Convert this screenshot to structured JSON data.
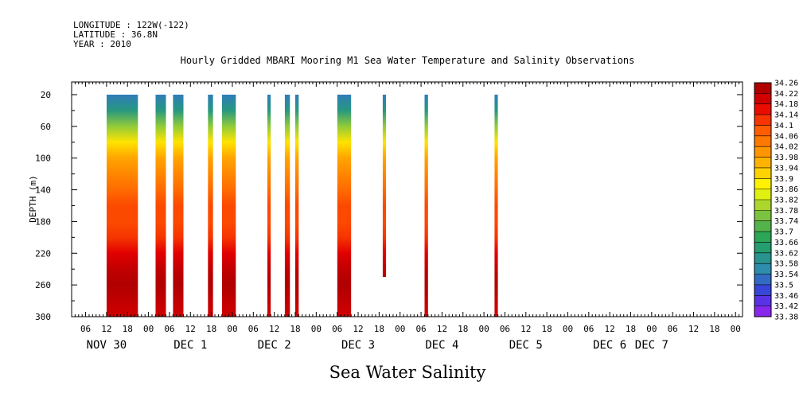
{
  "header": {
    "longitude": "LONGITUDE : 122W(-122)",
    "latitude": "LATITUDE : 36.8N",
    "year": "YEAR : 2010"
  },
  "title": "Hourly Gridded MBARI Mooring M1 Sea Water Temperature and Salinity Observations",
  "ylabel": "DEPTH (m)",
  "footer": "Sea Water Salinity",
  "chart_data": {
    "type": "heatmap",
    "title": "Hourly Gridded MBARI Mooring M1 Sea Water Temperature and Salinity Observations",
    "xlabel": "",
    "ylabel": "DEPTH (m)",
    "variable": "Sea Water Salinity",
    "xlim": [
      "2010-11-30T02:00",
      "2010-12-08T02:00"
    ],
    "ylim": [
      300,
      4
    ],
    "y_ticks": [
      20,
      60,
      100,
      140,
      180,
      220,
      260,
      300
    ],
    "x_hour_ticks": [
      "06",
      "12",
      "18",
      "00",
      "06",
      "12",
      "18",
      "00",
      "06",
      "12",
      "18",
      "00",
      "06",
      "12",
      "18",
      "00",
      "06",
      "12",
      "18",
      "00",
      "06",
      "12",
      "18",
      "00",
      "06",
      "12",
      "18",
      "00",
      "06",
      "12",
      "18",
      "00"
    ],
    "x_date_labels": [
      {
        "text": "NOV 30",
        "at": "2010-11-30T12:00"
      },
      {
        "text": "DEC  1",
        "at": "2010-12-01T12:00"
      },
      {
        "text": "DEC  2",
        "at": "2010-12-02T12:00"
      },
      {
        "text": "DEC  3",
        "at": "2010-12-03T12:00"
      },
      {
        "text": "DEC  4",
        "at": "2010-12-04T12:00"
      },
      {
        "text": "DEC  5",
        "at": "2010-12-05T12:00"
      },
      {
        "text": "DEC  6",
        "at": "2010-12-06T12:00"
      },
      {
        "text": "DEC  7",
        "at": "2010-12-07T00:00"
      }
    ],
    "colorbar": {
      "levels": [
        "33.38",
        "33.42",
        "33.46",
        "33.5",
        "33.54",
        "33.58",
        "33.62",
        "33.66",
        "33.7",
        "33.74",
        "33.78",
        "33.82",
        "33.86",
        "33.9",
        "33.94",
        "33.98",
        "34.02",
        "34.06",
        "34.1",
        "34.14",
        "34.18",
        "34.22",
        "34.26"
      ],
      "min": 33.38,
      "max": 34.26
    },
    "depth_profile": {
      "depths": [
        20,
        40,
        60,
        80,
        100,
        120,
        140,
        160,
        180,
        200,
        220,
        240,
        260,
        280,
        300
      ],
      "salinity": [
        33.54,
        33.62,
        33.78,
        33.9,
        33.98,
        34.02,
        34.06,
        34.1,
        34.1,
        34.12,
        34.18,
        34.22,
        34.24,
        34.22,
        34.2
      ]
    },
    "series": [
      {
        "start": "2010-11-30T12:00",
        "end": "2010-11-30T21:00",
        "depth_min": 20,
        "depth_max": 300
      },
      {
        "start": "2010-12-01T02:00",
        "end": "2010-12-01T05:00",
        "depth_min": 20,
        "depth_max": 300
      },
      {
        "start": "2010-12-01T07:00",
        "end": "2010-12-01T10:00",
        "depth_min": 20,
        "depth_max": 300
      },
      {
        "start": "2010-12-01T17:00",
        "end": "2010-12-01T18:30",
        "depth_min": 20,
        "depth_max": 300
      },
      {
        "start": "2010-12-01T21:00",
        "end": "2010-12-02T01:00",
        "depth_min": 20,
        "depth_max": 300
      },
      {
        "start": "2010-12-02T10:00",
        "end": "2010-12-02T11:00",
        "depth_min": 20,
        "depth_max": 300
      },
      {
        "start": "2010-12-02T15:00",
        "end": "2010-12-02T16:30",
        "depth_min": 20,
        "depth_max": 300
      },
      {
        "start": "2010-12-02T18:00",
        "end": "2010-12-02T19:00",
        "depth_min": 20,
        "depth_max": 300
      },
      {
        "start": "2010-12-03T06:00",
        "end": "2010-12-03T10:00",
        "depth_min": 20,
        "depth_max": 300
      },
      {
        "start": "2010-12-03T19:00",
        "end": "2010-12-03T20:00",
        "depth_min": 20,
        "depth_max": 250
      },
      {
        "start": "2010-12-04T07:00",
        "end": "2010-12-04T08:00",
        "depth_min": 20,
        "depth_max": 300
      },
      {
        "start": "2010-12-05T03:00",
        "end": "2010-12-05T04:00",
        "depth_min": 20,
        "depth_max": 300
      }
    ]
  }
}
